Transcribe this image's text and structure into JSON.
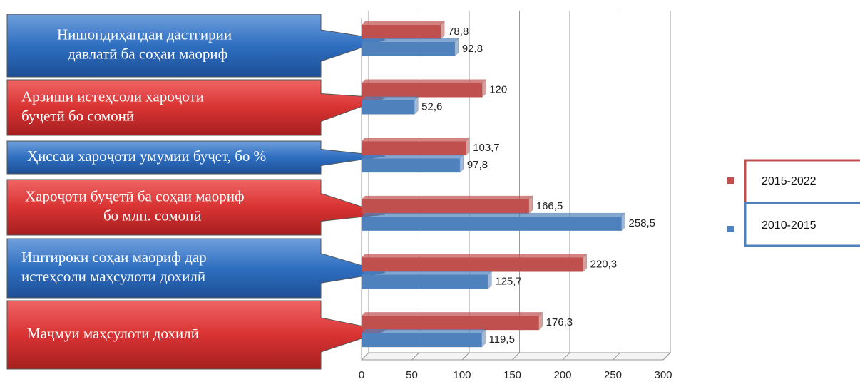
{
  "chart_data": {
    "type": "bar",
    "orientation": "horizontal",
    "categories": [
      [
        "Нишондиҳандаи дастгирии",
        "давлатӣ ба соҳаи маориф"
      ],
      [
        "Арзиши истеҳсоли хароҷоти",
        "буҷетӣ бо сомонӣ"
      ],
      [
        "Ҳиссаи хароҷоти  умумии буҷет, бо %"
      ],
      [
        "Хароҷоти буҷетӣ ба соҳаи маориф",
        "бо млн.  сомонӣ"
      ],
      [
        "Иштироки соҳаи маориф дар",
        "истеҳсоли маҳсулоти дохилӣ"
      ],
      [
        "Маҷмуи маҳсулоти дохилӣ"
      ]
    ],
    "series": [
      {
        "name": "2015-2022",
        "color": "#c0504d",
        "values": [
          78.8,
          120,
          103.7,
          166.5,
          220.3,
          176.3
        ],
        "value_labels": [
          "78,8",
          "120",
          "103,7",
          "166,5",
          "220,3",
          "176,3"
        ]
      },
      {
        "name": "2010-2015",
        "color": "#4f81bd",
        "values": [
          92.8,
          52.6,
          97.8,
          258.5,
          125.7,
          119.5
        ],
        "value_labels": [
          "92,8",
          "52,6",
          "97,8",
          "258,5",
          "125,7",
          "119,5"
        ]
      }
    ],
    "xlim": [
      0,
      300
    ],
    "xticks": [
      0,
      50,
      100,
      150,
      200,
      250,
      300
    ],
    "grid": true,
    "legend": "right"
  }
}
